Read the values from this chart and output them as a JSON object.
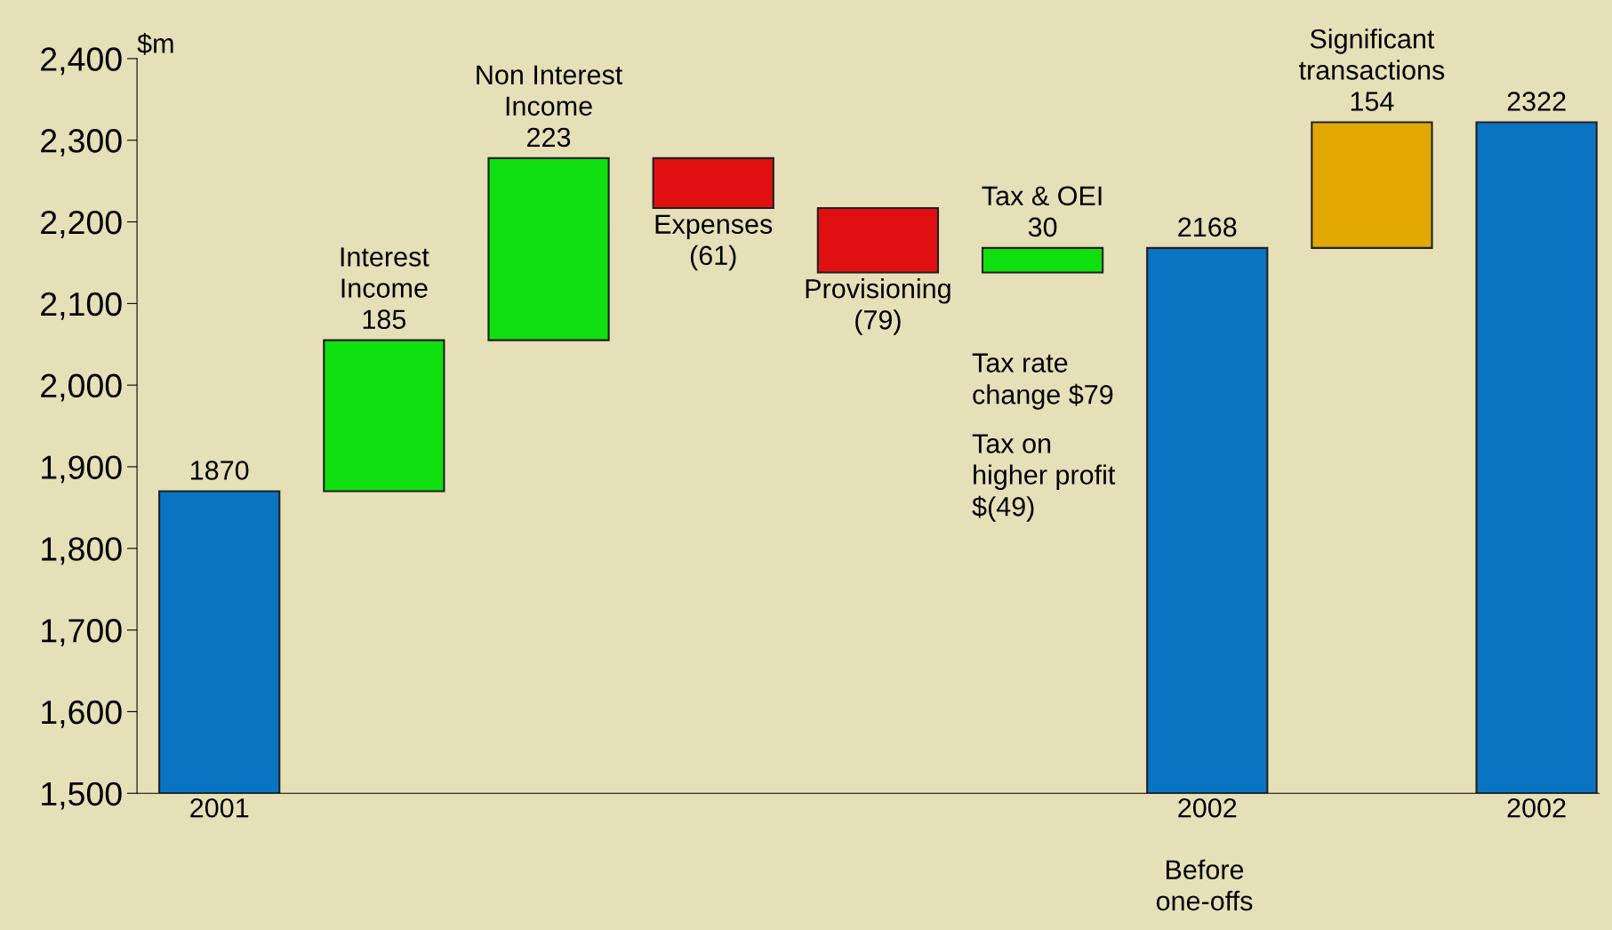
{
  "chart_data": {
    "type": "bar",
    "ylabel": "$m",
    "categories": [
      "2001",
      null,
      null,
      null,
      null,
      null,
      "2002",
      null,
      "2002"
    ],
    "values": [
      1870,
      185,
      223,
      -61,
      -79,
      30,
      2168,
      154,
      2322
    ],
    "base": [
      null,
      1870,
      2055,
      2278,
      2217,
      2138,
      null,
      2168,
      null
    ],
    "colors": [
      "#0a74c2",
      "#10e010",
      "#10e010",
      "#e01010",
      "#e01010",
      "#10e010",
      "#0a74c2",
      "#e0a800",
      "#0a74c2"
    ],
    "value_labels": [
      "1870",
      "Interest\nIncome\n185",
      "Non Interest\nIncome\n223",
      "Expenses\n(61)",
      "Provisioning\n(79)",
      "Tax & OEI\n30",
      "2168",
      "Significant\ntransactions\n154",
      "2322"
    ],
    "ylim": [
      1500,
      2400
    ],
    "yticks": [
      {
        "value": 1500,
        "label": "1,500"
      },
      {
        "value": 1600,
        "label": "1,600"
      },
      {
        "value": 1700,
        "label": "1,700"
      },
      {
        "value": 1800,
        "label": "1,800"
      },
      {
        "value": 1900,
        "label": "1,900"
      },
      {
        "value": 2000,
        "label": "2,000"
      },
      {
        "value": 2100,
        "label": "2,100"
      },
      {
        "value": 2200,
        "label": "2,200"
      },
      {
        "value": 2300,
        "label": "2,300"
      },
      {
        "value": 2400,
        "label": "2,400"
      }
    ],
    "annotations": [
      "Tax rate\nchange $79",
      "Tax on\nhigher profit\n$(49)",
      "Before\none-offs"
    ],
    "grid": false
  }
}
